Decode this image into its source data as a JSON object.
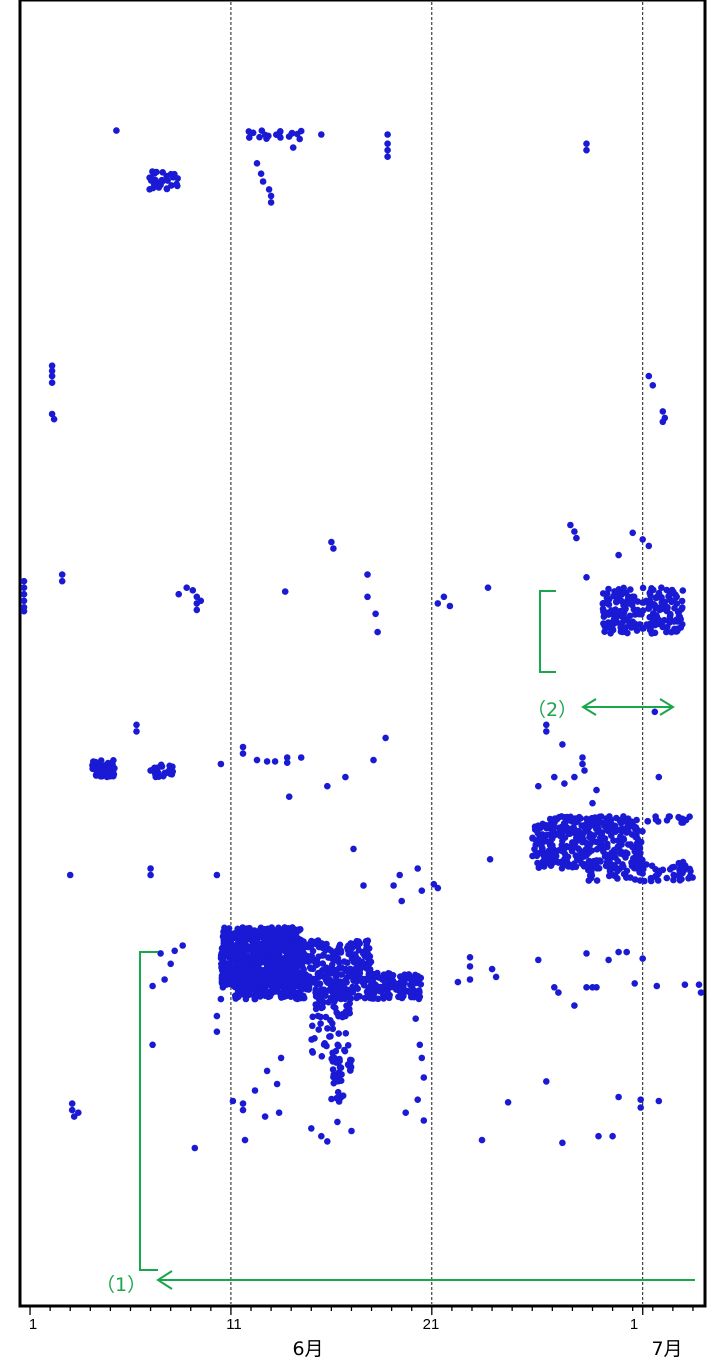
{
  "chart_data": {
    "type": "scatter",
    "title": "",
    "xlabel": "",
    "ylabel": "",
    "x_unit": "day",
    "xlim": [
      0.5,
      34.6
    ],
    "grid_days": [
      11,
      21,
      31.5
    ],
    "x_ticks": [
      {
        "day": 1,
        "label": "1"
      },
      {
        "day": 11,
        "label": "11"
      },
      {
        "day": 21,
        "label": "21"
      },
      {
        "day": 31.5,
        "label": "1"
      }
    ],
    "month_labels": [
      {
        "day": 15,
        "label": "6月"
      },
      {
        "day": 33.5,
        "label": "7月"
      }
    ],
    "annotations": [
      {
        "label": "（1）",
        "color": "#1aa64b"
      },
      {
        "label": "（2）",
        "color": "#1aa64b"
      }
    ],
    "series": [
      {
        "color": "#1a1ad4",
        "clusters": [
          {
            "x": [
              10.5,
              14.5
            ],
            "y": [
              0.245,
              0.29
            ],
            "n": 700
          },
          {
            "x": [
              11.2,
              20.5
            ],
            "y": [
              0.235,
              0.255
            ],
            "n": 420
          },
          {
            "x": [
              12.5,
              18.0
            ],
            "y": [
              0.255,
              0.28
            ],
            "n": 200
          },
          {
            "x": [
              15.0,
              17.0
            ],
            "y": [
              0.18,
              0.235
            ],
            "n": 70
          },
          {
            "x": [
              16.0,
              16.6
            ],
            "y": [
              0.155,
              0.19
            ],
            "n": 25
          },
          {
            "x": [
              26.0,
              31.5
            ],
            "y": [
              0.335,
              0.37
            ],
            "n": 320
          },
          {
            "x": [
              28.5,
              34.0
            ],
            "y": [
              0.325,
              0.34
            ],
            "n": 80
          },
          {
            "x": [
              26.8,
              34.0
            ],
            "y": [
              0.37,
              0.375
            ],
            "n": 60
          },
          {
            "x": [
              29.5,
              33.5
            ],
            "y": [
              0.515,
              0.55
            ],
            "n": 220
          },
          {
            "x": [
              4.1,
              5.2
            ],
            "y": [
              0.405,
              0.418
            ],
            "n": 55
          },
          {
            "x": [
              7.0,
              8.3
            ],
            "y": [
              0.405,
              0.415
            ],
            "n": 22
          },
          {
            "x": [
              6.9,
              8.4
            ],
            "y": [
              0.855,
              0.87
            ],
            "n": 30
          },
          {
            "x": [
              11.8,
              14.8
            ],
            "y": [
              0.893,
              0.9
            ],
            "n": 18
          }
        ],
        "points": [
          [
            5.3,
            0.9
          ],
          [
            12.3,
            0.875
          ],
          [
            12.5,
            0.867
          ],
          [
            12.6,
            0.861
          ],
          [
            12.9,
            0.855
          ],
          [
            13.0,
            0.85
          ],
          [
            13.0,
            0.845
          ],
          [
            14.1,
            0.887
          ],
          [
            15.5,
            0.897
          ],
          [
            18.8,
            0.897
          ],
          [
            18.8,
            0.89
          ],
          [
            18.8,
            0.885
          ],
          [
            18.8,
            0.88
          ],
          [
            28.7,
            0.89
          ],
          [
            28.7,
            0.885
          ],
          [
            2.1,
            0.72
          ],
          [
            2.1,
            0.716
          ],
          [
            2.1,
            0.712
          ],
          [
            2.1,
            0.707
          ],
          [
            2.1,
            0.683
          ],
          [
            2.2,
            0.679
          ],
          [
            31.8,
            0.712
          ],
          [
            32.0,
            0.705
          ],
          [
            32.5,
            0.685
          ],
          [
            32.6,
            0.68
          ],
          [
            32.5,
            0.677
          ],
          [
            0.7,
            0.555
          ],
          [
            0.7,
            0.55
          ],
          [
            0.7,
            0.545
          ],
          [
            0.7,
            0.54
          ],
          [
            0.7,
            0.535
          ],
          [
            0.7,
            0.532
          ],
          [
            2.6,
            0.56
          ],
          [
            2.6,
            0.555
          ],
          [
            8.4,
            0.545
          ],
          [
            8.8,
            0.55
          ],
          [
            9.1,
            0.548
          ],
          [
            9.3,
            0.543
          ],
          [
            9.3,
            0.538
          ],
          [
            9.3,
            0.533
          ],
          [
            9.5,
            0.54
          ],
          [
            13.7,
            0.547
          ],
          [
            16.0,
            0.585
          ],
          [
            16.1,
            0.58
          ],
          [
            17.8,
            0.56
          ],
          [
            17.8,
            0.543
          ],
          [
            18.2,
            0.53
          ],
          [
            18.3,
            0.516
          ],
          [
            21.3,
            0.538
          ],
          [
            21.6,
            0.543
          ],
          [
            21.9,
            0.536
          ],
          [
            23.8,
            0.55
          ],
          [
            27.9,
            0.598
          ],
          [
            28.1,
            0.593
          ],
          [
            28.2,
            0.588
          ],
          [
            28.7,
            0.558
          ],
          [
            31.0,
            0.592
          ],
          [
            31.5,
            0.587
          ],
          [
            31.8,
            0.582
          ],
          [
            30.3,
            0.575
          ],
          [
            6.3,
            0.445
          ],
          [
            6.3,
            0.44
          ],
          [
            11.6,
            0.428
          ],
          [
            11.6,
            0.423
          ],
          [
            10.5,
            0.415
          ],
          [
            12.3,
            0.418
          ],
          [
            12.8,
            0.417
          ],
          [
            13.2,
            0.417
          ],
          [
            13.8,
            0.416
          ],
          [
            13.8,
            0.42
          ],
          [
            14.5,
            0.42
          ],
          [
            18.7,
            0.435
          ],
          [
            18.1,
            0.418
          ],
          [
            16.7,
            0.405
          ],
          [
            13.9,
            0.39
          ],
          [
            15.8,
            0.398
          ],
          [
            26.7,
            0.445
          ],
          [
            26.7,
            0.44
          ],
          [
            27.5,
            0.43
          ],
          [
            28.5,
            0.42
          ],
          [
            28.5,
            0.415
          ],
          [
            28.6,
            0.41
          ],
          [
            27.1,
            0.405
          ],
          [
            27.6,
            0.4
          ],
          [
            28.1,
            0.405
          ],
          [
            29.2,
            0.395
          ],
          [
            26.3,
            0.398
          ],
          [
            29.0,
            0.385
          ],
          [
            32.1,
            0.455
          ],
          [
            32.3,
            0.405
          ],
          [
            3.0,
            0.33
          ],
          [
            7.0,
            0.335
          ],
          [
            7.0,
            0.33
          ],
          [
            10.3,
            0.33
          ],
          [
            17.1,
            0.35
          ],
          [
            19.4,
            0.33
          ],
          [
            20.3,
            0.335
          ],
          [
            21.1,
            0.323
          ],
          [
            21.3,
            0.32
          ],
          [
            23.9,
            0.342
          ],
          [
            17.6,
            0.322
          ],
          [
            19.1,
            0.322
          ],
          [
            20.5,
            0.318
          ],
          [
            19.5,
            0.31
          ],
          [
            7.5,
            0.27
          ],
          [
            7.7,
            0.25
          ],
          [
            8.2,
            0.272
          ],
          [
            8.6,
            0.276
          ],
          [
            8.0,
            0.262
          ],
          [
            7.1,
            0.245
          ],
          [
            7.1,
            0.2
          ],
          [
            9.2,
            0.121
          ],
          [
            10.3,
            0.21
          ],
          [
            10.3,
            0.222
          ],
          [
            10.5,
            0.235
          ],
          [
            11.1,
            0.157
          ],
          [
            11.6,
            0.155
          ],
          [
            11.6,
            0.15
          ],
          [
            11.7,
            0.127
          ],
          [
            12.2,
            0.165
          ],
          [
            12.8,
            0.18
          ],
          [
            12.7,
            0.145
          ],
          [
            13.3,
            0.17
          ],
          [
            13.5,
            0.19
          ],
          [
            13.4,
            0.148
          ],
          [
            15.0,
            0.136
          ],
          [
            15.5,
            0.13
          ],
          [
            15.8,
            0.126
          ],
          [
            16.3,
            0.141
          ],
          [
            17.0,
            0.134
          ],
          [
            20.2,
            0.22
          ],
          [
            20.4,
            0.2
          ],
          [
            20.5,
            0.19
          ],
          [
            20.6,
            0.175
          ],
          [
            20.3,
            0.158
          ],
          [
            20.6,
            0.142
          ],
          [
            19.7,
            0.148
          ],
          [
            22.9,
            0.25
          ],
          [
            22.9,
            0.26
          ],
          [
            22.9,
            0.267
          ],
          [
            22.3,
            0.248
          ],
          [
            24.0,
            0.258
          ],
          [
            24.2,
            0.252
          ],
          [
            23.5,
            0.127
          ],
          [
            24.8,
            0.156
          ],
          [
            26.3,
            0.265
          ],
          [
            27.3,
            0.24
          ],
          [
            27.1,
            0.244
          ],
          [
            28.7,
            0.27
          ],
          [
            28.7,
            0.244
          ],
          [
            29.0,
            0.244
          ],
          [
            29.2,
            0.244
          ],
          [
            30.3,
            0.271
          ],
          [
            30.7,
            0.271
          ],
          [
            29.8,
            0.265
          ],
          [
            31.5,
            0.266
          ],
          [
            32.2,
            0.245
          ],
          [
            34.3,
            0.246
          ],
          [
            34.4,
            0.24
          ],
          [
            31.4,
            0.158
          ],
          [
            31.4,
            0.152
          ],
          [
            32.3,
            0.157
          ],
          [
            30.0,
            0.13
          ],
          [
            27.5,
            0.125
          ],
          [
            29.3,
            0.13
          ],
          [
            30.3,
            0.16
          ],
          [
            3.1,
            0.155
          ],
          [
            3.1,
            0.15
          ],
          [
            3.2,
            0.145
          ],
          [
            3.4,
            0.148
          ],
          [
            10.6,
            0.244
          ],
          [
            26.7,
            0.172
          ],
          [
            28.1,
            0.23
          ],
          [
            31.1,
            0.247
          ],
          [
            33.6,
            0.246
          ]
        ]
      }
    ]
  }
}
